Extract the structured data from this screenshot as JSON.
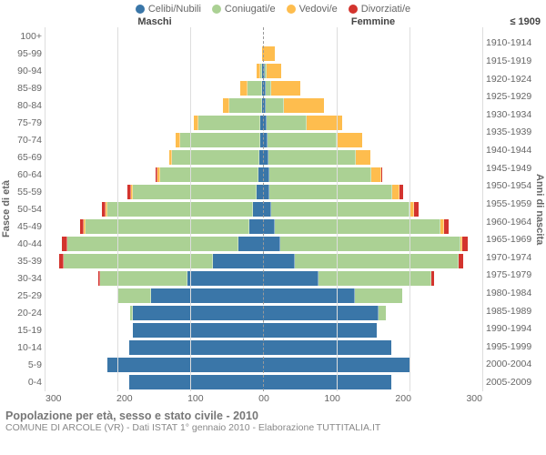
{
  "legend": [
    {
      "label": "Celibi/Nubili",
      "color": "#3a76a8"
    },
    {
      "label": "Coniugati/e",
      "color": "#abd194"
    },
    {
      "label": "Vedovi/e",
      "color": "#febd4e"
    },
    {
      "label": "Divorziati/e",
      "color": "#d3342e"
    }
  ],
  "headers": {
    "left": "Maschi",
    "right": "Femmine",
    "rightCol": "≤ 1909"
  },
  "ylabels": {
    "left": "Fasce di età",
    "right": "Anni di nascita"
  },
  "ageLabels": [
    "100+",
    "95-99",
    "90-94",
    "85-89",
    "80-84",
    "75-79",
    "70-74",
    "65-69",
    "60-64",
    "55-59",
    "50-54",
    "45-49",
    "40-44",
    "35-39",
    "30-34",
    "25-29",
    "20-24",
    "15-19",
    "10-14",
    "5-9",
    "0-4"
  ],
  "yearLabels": [
    "",
    "1910-1914",
    "1915-1919",
    "1920-1924",
    "1925-1929",
    "1930-1934",
    "1935-1939",
    "1940-1944",
    "1945-1949",
    "1950-1954",
    "1955-1959",
    "1960-1964",
    "1965-1969",
    "1970-1974",
    "1975-1979",
    "1980-1984",
    "1985-1989",
    "1990-1994",
    "1995-1999",
    "2000-2004",
    "2005-2009"
  ],
  "xmax": 300,
  "xticks": [
    "0",
    "100",
    "200",
    "300"
  ],
  "colors": {
    "single": "#3a76a8",
    "married": "#abd194",
    "widowed": "#febd4e",
    "divorced": "#d3342e",
    "grid": "#dddddd",
    "axis": "#999999",
    "background": "#ffffff"
  },
  "fonts": {
    "tick": 10.5,
    "label": 11,
    "legend": 11,
    "title": 12.5,
    "sub": 10.5
  },
  "maschi": [
    {
      "single": 0,
      "married": 0,
      "widowed": 0,
      "divorced": 0
    },
    {
      "single": 0,
      "married": 0,
      "widowed": 3,
      "divorced": 0
    },
    {
      "single": 2,
      "married": 3,
      "widowed": 5,
      "divorced": 0
    },
    {
      "single": 3,
      "married": 20,
      "widowed": 10,
      "divorced": 0
    },
    {
      "single": 3,
      "married": 45,
      "widowed": 8,
      "divorced": 0
    },
    {
      "single": 5,
      "married": 85,
      "widowed": 6,
      "divorced": 0
    },
    {
      "single": 5,
      "married": 110,
      "widowed": 6,
      "divorced": 0
    },
    {
      "single": 6,
      "married": 120,
      "widowed": 4,
      "divorced": 0
    },
    {
      "single": 8,
      "married": 135,
      "widowed": 3,
      "divorced": 3
    },
    {
      "single": 10,
      "married": 170,
      "widowed": 3,
      "divorced": 4
    },
    {
      "single": 15,
      "married": 200,
      "widowed": 2,
      "divorced": 6
    },
    {
      "single": 20,
      "married": 225,
      "widowed": 2,
      "divorced": 6
    },
    {
      "single": 35,
      "married": 235,
      "widowed": 0,
      "divorced": 8
    },
    {
      "single": 70,
      "married": 205,
      "widowed": 0,
      "divorced": 6
    },
    {
      "single": 105,
      "married": 120,
      "widowed": 0,
      "divorced": 3
    },
    {
      "single": 155,
      "married": 45,
      "widowed": 0,
      "divorced": 0
    },
    {
      "single": 180,
      "married": 4,
      "widowed": 0,
      "divorced": 0
    },
    {
      "single": 180,
      "married": 0,
      "widowed": 0,
      "divorced": 0
    },
    {
      "single": 185,
      "married": 0,
      "widowed": 0,
      "divorced": 0
    },
    {
      "single": 215,
      "married": 0,
      "widowed": 0,
      "divorced": 0
    },
    {
      "single": 185,
      "married": 0,
      "widowed": 0,
      "divorced": 0
    }
  ],
  "femmine": [
    {
      "single": 0,
      "married": 0,
      "widowed": 0,
      "divorced": 0
    },
    {
      "single": 0,
      "married": 0,
      "widowed": 15,
      "divorced": 0
    },
    {
      "single": 1,
      "married": 2,
      "widowed": 20,
      "divorced": 0
    },
    {
      "single": 2,
      "married": 8,
      "widowed": 40,
      "divorced": 0
    },
    {
      "single": 3,
      "married": 25,
      "widowed": 55,
      "divorced": 0
    },
    {
      "single": 4,
      "married": 55,
      "widowed": 48,
      "divorced": 0
    },
    {
      "single": 5,
      "married": 95,
      "widowed": 35,
      "divorced": 0
    },
    {
      "single": 6,
      "married": 120,
      "widowed": 20,
      "divorced": 0
    },
    {
      "single": 7,
      "married": 140,
      "widowed": 14,
      "divorced": 2
    },
    {
      "single": 8,
      "married": 168,
      "widowed": 10,
      "divorced": 5
    },
    {
      "single": 10,
      "married": 190,
      "widowed": 6,
      "divorced": 6
    },
    {
      "single": 15,
      "married": 228,
      "widowed": 4,
      "divorced": 7
    },
    {
      "single": 22,
      "married": 248,
      "widowed": 2,
      "divorced": 8
    },
    {
      "single": 42,
      "married": 225,
      "widowed": 0,
      "divorced": 7
    },
    {
      "single": 75,
      "married": 155,
      "widowed": 0,
      "divorced": 4
    },
    {
      "single": 125,
      "married": 65,
      "widowed": 0,
      "divorced": 0
    },
    {
      "single": 158,
      "married": 10,
      "widowed": 0,
      "divorced": 0
    },
    {
      "single": 155,
      "married": 0,
      "widowed": 0,
      "divorced": 0
    },
    {
      "single": 175,
      "married": 0,
      "widowed": 0,
      "divorced": 0
    },
    {
      "single": 200,
      "married": 0,
      "widowed": 0,
      "divorced": 0
    },
    {
      "single": 175,
      "married": 0,
      "widowed": 0,
      "divorced": 0
    }
  ],
  "footer": {
    "title": "Popolazione per età, sesso e stato civile - 2010",
    "sub": "COMUNE DI ARCOLE (VR) - Dati ISTAT 1° gennaio 2010 - Elaborazione TUTTITALIA.IT"
  }
}
